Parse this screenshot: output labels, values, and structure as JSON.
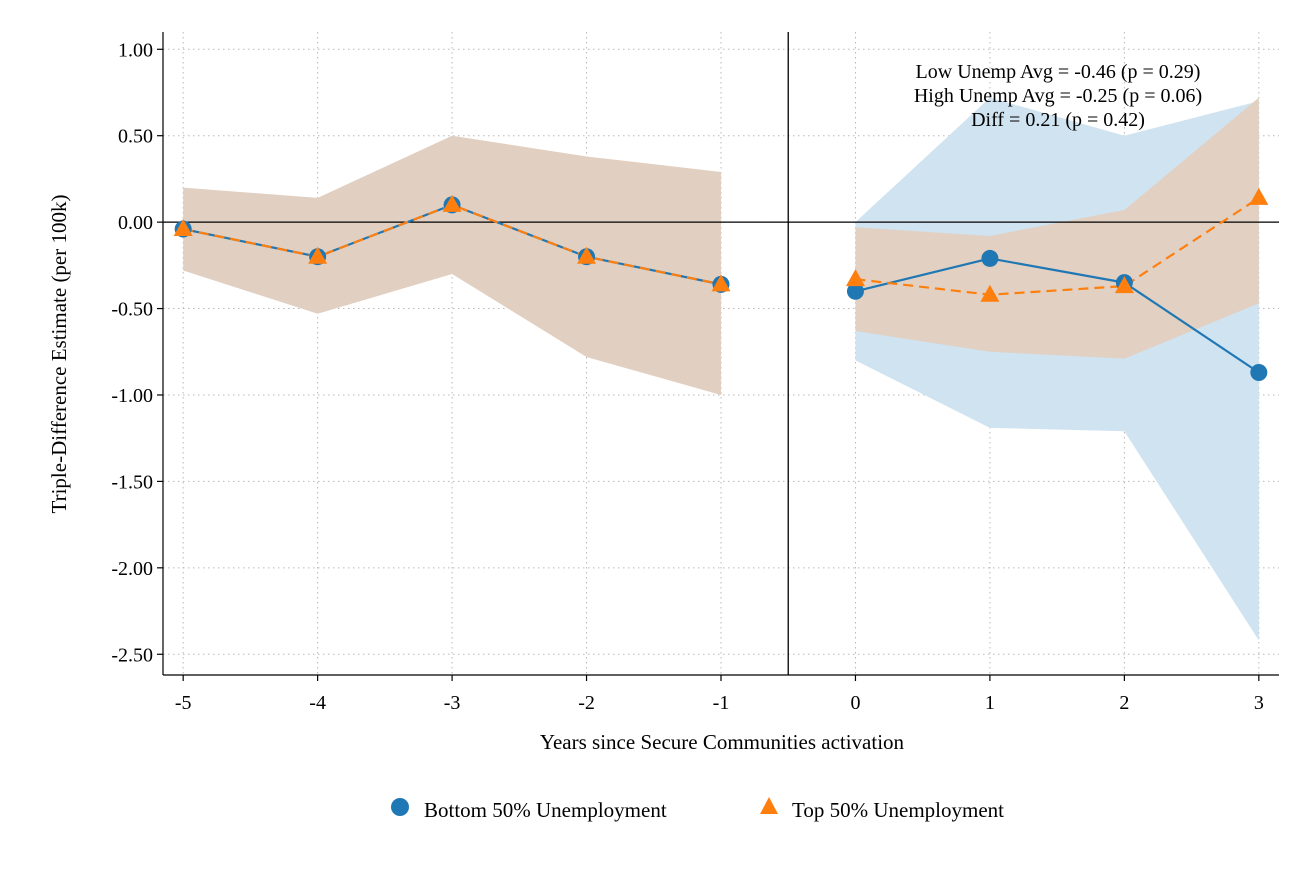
{
  "chart_data": {
    "type": "line",
    "xlabel": "Years since Secure Communities activation",
    "ylabel": "Triple-Difference Estimate (per 100k)",
    "xlim": [
      -5.15,
      3.15
    ],
    "ylim": [
      -2.62,
      1.1
    ],
    "xticks": [
      -5,
      -4,
      -3,
      -2,
      -1,
      0,
      1,
      2,
      3
    ],
    "xtick_labels": [
      "-5",
      "-4",
      "-3",
      "-2",
      "-1",
      "0",
      "1",
      "2",
      "3"
    ],
    "yticks": [
      1.0,
      0.5,
      0.0,
      -0.5,
      -1.0,
      -1.5,
      -2.0,
      -2.5
    ],
    "ytick_labels": [
      "1.00",
      "0.50",
      "0.00",
      "-0.50",
      "-1.00",
      "-1.50",
      "-2.00",
      "-2.50"
    ],
    "grid": true,
    "reference_lines": {
      "horizontal_y": 0,
      "vertical_x": -0.5
    },
    "colors": {
      "bottom": "#1f77b4",
      "top": "#ff7f0e",
      "ci_pre": "#e1cfc1",
      "ci_post_low": "#cfe3f0",
      "ci_post_high": "#e2d0c2"
    },
    "annotations": [
      "Low Unemp Avg = -0.46 (p = 0.29)",
      "High Unemp Avg = -0.25 (p = 0.06)",
      "Diff = 0.21 (p = 0.42)"
    ],
    "legend_position": "bottom",
    "series": [
      {
        "name": "Bottom 50% Unemployment",
        "marker": "circle",
        "line": "solid",
        "x": [
          -5,
          -4,
          -3,
          -2,
          -1,
          0,
          1,
          2,
          3
        ],
        "values": [
          -0.04,
          -0.2,
          0.1,
          -0.2,
          -0.36,
          -0.4,
          -0.21,
          -0.35,
          -0.87
        ],
        "ci_x": [
          0,
          1,
          2,
          3
        ],
        "ci_lower": [
          -0.8,
          -1.19,
          -1.21,
          -2.42
        ],
        "ci_upper": [
          0.0,
          0.72,
          0.5,
          0.7
        ]
      },
      {
        "name": "Top 50% Unemployment",
        "marker": "triangle",
        "line": "dashed",
        "x": [
          -5,
          -4,
          -3,
          -2,
          -1,
          0,
          1,
          2,
          3
        ],
        "values": [
          -0.04,
          -0.2,
          0.1,
          -0.2,
          -0.36,
          -0.33,
          -0.42,
          -0.37,
          0.14
        ],
        "ci_x": [
          -5,
          -4,
          -3,
          -2,
          -1,
          0,
          1,
          2,
          3
        ],
        "ci_lower": [
          -0.28,
          -0.53,
          -0.3,
          -0.78,
          -1.0,
          -0.63,
          -0.75,
          -0.79,
          -0.47
        ],
        "ci_upper": [
          0.2,
          0.14,
          0.5,
          0.38,
          0.29,
          -0.03,
          -0.08,
          0.07,
          0.72
        ]
      }
    ]
  }
}
